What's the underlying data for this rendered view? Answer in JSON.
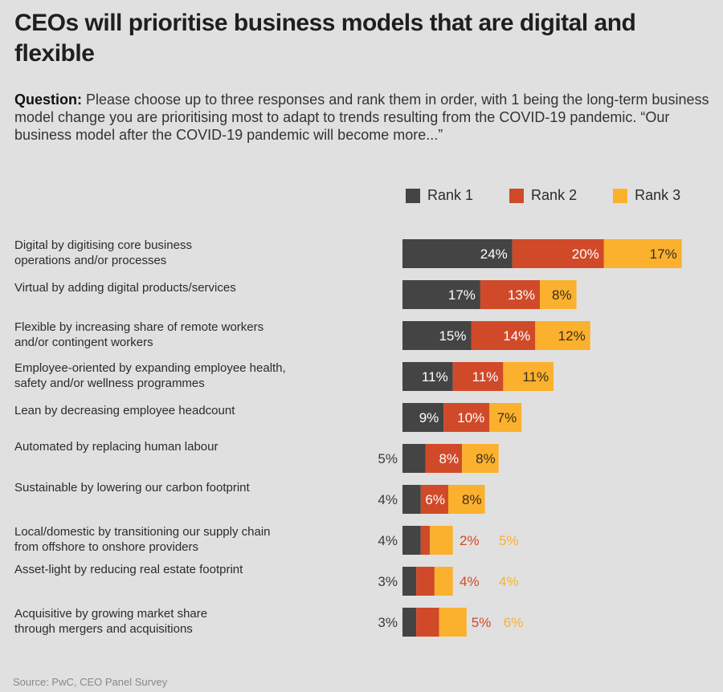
{
  "header": {
    "title": "CEOs will prioritise business models that are digital and flexible",
    "question_label": "Question:",
    "question_text": " Please choose up to three responses and rank them in order, with 1 being the long-term business model change you are prioritising most to adapt to trends resulting from the COVID-19 pandemic. “Our business model after the COVID-19 pandemic will become more...”"
  },
  "source": "Source: PwC, CEO Panel Survey",
  "colors": {
    "rank1": "#444444",
    "rank2": "#d04a2a",
    "rank3": "#fbb12e",
    "background": "#e0e0e0"
  },
  "chart_data": {
    "type": "bar",
    "orientation": "horizontal",
    "stacked": true,
    "title": "CEOs will prioritise business models that are digital and flexible",
    "xlabel": "",
    "ylabel": "",
    "unit": "%",
    "legend": {
      "placement": "top-right",
      "entries": [
        "Rank 1",
        "Rank 2",
        "Rank 3"
      ]
    },
    "grid": false,
    "categories": [
      "Digital by digitising core business operations and/or processes",
      "Virtual by adding digital products/services",
      "Flexible by increasing share of remote workers and/or contingent workers",
      "Employee-oriented by expanding employee health, safety and/or wellness programmes",
      "Lean by decreasing employee headcount",
      "Automated by replacing human labour",
      "Sustainable by lowering our carbon footprint",
      "Local/domestic by transitioning our supply chain from offshore to onshore providers",
      "Asset-light by reducing real estate footprint",
      "Acquisitive by growing market share through mergers and acquisitions"
    ],
    "category_lines": [
      [
        "Digital by digitising core business",
        "operations and/or processes"
      ],
      [
        "Virtual by adding digital products/services"
      ],
      [
        "Flexible by increasing share of remote workers",
        "and/or contingent workers"
      ],
      [
        "Employee-oriented by expanding employee health,",
        "safety and/or wellness programmes"
      ],
      [
        "Lean by decreasing employee headcount"
      ],
      [
        "Automated by replacing human labour"
      ],
      [
        "Sustainable by lowering our carbon footprint"
      ],
      [
        "Local/domestic by transitioning our supply chain",
        "from offshore to onshore providers"
      ],
      [
        "Asset-light by reducing real estate footprint"
      ],
      [
        "Acquisitive by growing market share",
        "through mergers and acquisitions"
      ]
    ],
    "series": [
      {
        "name": "Rank 1",
        "values": [
          24,
          17,
          15,
          11,
          9,
          5,
          4,
          4,
          3,
          3
        ]
      },
      {
        "name": "Rank 2",
        "values": [
          20,
          13,
          14,
          11,
          10,
          8,
          6,
          2,
          4,
          5
        ]
      },
      {
        "name": "Rank 3",
        "values": [
          17,
          8,
          12,
          11,
          7,
          8,
          8,
          5,
          4,
          6
        ]
      }
    ],
    "data_labels": [
      [
        "24%",
        "20%",
        "17%"
      ],
      [
        "17%",
        "13%",
        "8%"
      ],
      [
        "15%",
        "14%",
        "12%"
      ],
      [
        "11%",
        "11%",
        "11%"
      ],
      [
        "9%",
        "10%",
        "7%"
      ],
      [
        "5%",
        "8%",
        "8%"
      ],
      [
        "4%",
        "6%",
        "8%"
      ],
      [
        "4%",
        "2%",
        "5%"
      ],
      [
        "3%",
        "4%",
        "4%"
      ],
      [
        "3%",
        "5%",
        "6%"
      ]
    ],
    "xlim": [
      0,
      61
    ]
  }
}
